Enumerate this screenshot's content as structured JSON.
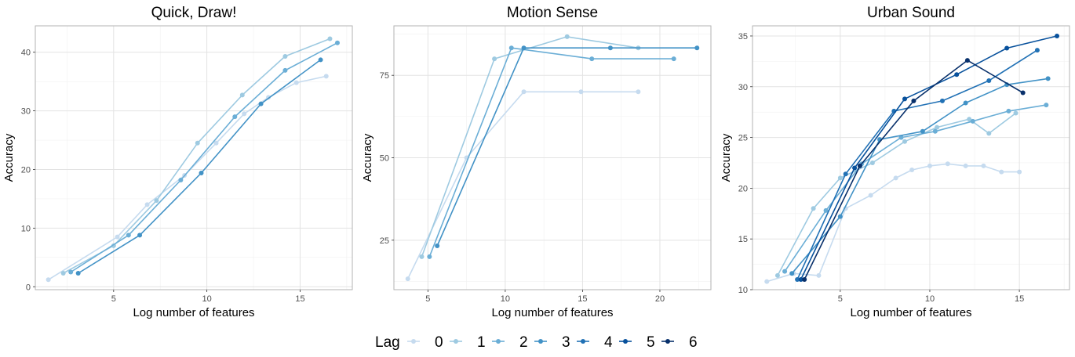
{
  "legend": {
    "title": "Lag",
    "labels": [
      "0",
      "1",
      "2",
      "3",
      "4",
      "5",
      "6"
    ],
    "colors": [
      "#c6dbef",
      "#9ecae1",
      "#6baed6",
      "#4292c6",
      "#2171b5",
      "#08519c",
      "#08306b"
    ]
  },
  "chart_data": [
    {
      "type": "line",
      "title": "Quick, Draw!",
      "xlabel": "Log number of features",
      "ylabel": "Accuracy",
      "xlim": [
        0.8,
        17.8
      ],
      "ylim": [
        -0.5,
        44.5
      ],
      "xticks": [
        5,
        10,
        15
      ],
      "yticks": [
        0,
        10,
        20,
        30,
        40
      ],
      "grid": true,
      "series": [
        {
          "name": "0",
          "x": [
            1.5,
            5.2,
            6.8,
            8.8,
            10.5,
            12.0,
            13.3,
            14.8,
            16.4
          ],
          "y": [
            1.2,
            8.5,
            14.0,
            19.0,
            24.5,
            29.5,
            32.3,
            34.8,
            35.9
          ]
        },
        {
          "name": "1",
          "x": [
            2.3,
            5.0,
            7.3,
            9.5,
            11.9,
            14.2,
            16.6
          ],
          "y": [
            2.3,
            7.0,
            14.7,
            24.5,
            32.7,
            39.3,
            42.3
          ]
        },
        {
          "name": "2",
          "x": [
            2.7,
            5.8,
            8.6,
            11.5,
            14.2,
            17.0
          ],
          "y": [
            2.5,
            8.8,
            18.2,
            29.0,
            36.9,
            41.6
          ]
        },
        {
          "name": "3",
          "x": [
            3.1,
            6.4,
            9.7,
            12.9,
            16.1
          ],
          "y": [
            2.3,
            8.8,
            19.4,
            31.2,
            38.7
          ]
        }
      ]
    },
    {
      "type": "line",
      "title": "Motion Sense",
      "xlabel": "Log number of features",
      "ylabel": "Accuracy",
      "xlim": [
        2.8,
        23.3
      ],
      "ylim": [
        10,
        90
      ],
      "xticks": [
        5,
        10,
        15,
        20
      ],
      "yticks": [
        25,
        50,
        75
      ],
      "grid": true,
      "series": [
        {
          "name": "0",
          "x": [
            3.7,
            7.5,
            11.2,
            14.9,
            18.6
          ],
          "y": [
            13.3,
            50.0,
            70.0,
            70.0,
            70.0
          ]
        },
        {
          "name": "1",
          "x": [
            4.6,
            9.3,
            14.0,
            18.6
          ],
          "y": [
            20.0,
            80.0,
            86.7,
            83.3
          ]
        },
        {
          "name": "2",
          "x": [
            5.1,
            10.4,
            15.6,
            20.9
          ],
          "y": [
            20.0,
            83.3,
            80.0,
            80.0
          ]
        },
        {
          "name": "3",
          "x": [
            5.6,
            11.2,
            16.8,
            22.4
          ],
          "y": [
            23.3,
            83.3,
            83.3,
            83.3
          ]
        }
      ]
    },
    {
      "type": "line",
      "title": "Urban Sound",
      "xlabel": "Log number of features",
      "ylabel": "Accuracy",
      "xlim": [
        0.1,
        17.8
      ],
      "ylim": [
        10,
        36
      ],
      "xticks": [
        5,
        10,
        15
      ],
      "yticks": [
        10,
        15,
        20,
        25,
        30,
        35
      ],
      "grid": true,
      "series": [
        {
          "name": "0",
          "x": [
            0.9,
            2.4,
            3.8,
            5.3,
            6.7,
            8.1,
            9.0,
            10.0,
            11.0,
            12.0,
            13.0,
            14.0,
            15.0
          ],
          "y": [
            10.8,
            11.6,
            11.4,
            18.0,
            19.3,
            21.0,
            21.8,
            22.2,
            22.4,
            22.2,
            22.2,
            21.6,
            21.6
          ]
        },
        {
          "name": "1",
          "x": [
            1.5,
            3.5,
            5.0,
            6.8,
            8.6,
            10.4,
            12.2,
            13.3,
            14.8
          ],
          "y": [
            11.4,
            18.0,
            21.0,
            22.5,
            24.6,
            26.0,
            26.8,
            25.4,
            27.4
          ]
        },
        {
          "name": "2",
          "x": [
            1.9,
            4.2,
            6.2,
            8.4,
            10.3,
            12.4,
            14.4,
            16.5
          ],
          "y": [
            11.8,
            17.8,
            22.4,
            25.0,
            25.6,
            26.6,
            27.6,
            28.2
          ]
        },
        {
          "name": "3",
          "x": [
            2.3,
            5.0,
            7.2,
            9.6,
            12.0,
            14.3,
            16.6
          ],
          "y": [
            11.6,
            17.2,
            24.8,
            25.6,
            28.4,
            30.2,
            30.8
          ]
        },
        {
          "name": "4",
          "x": [
            2.6,
            5.3,
            8.0,
            10.7,
            13.3,
            16.0
          ],
          "y": [
            11.0,
            21.4,
            27.6,
            28.6,
            30.6,
            33.6
          ]
        },
        {
          "name": "5",
          "x": [
            2.8,
            5.8,
            8.6,
            11.5,
            14.3,
            17.1
          ],
          "y": [
            11.0,
            22.0,
            28.8,
            31.2,
            33.8,
            35.0
          ]
        },
        {
          "name": "6",
          "x": [
            3.0,
            6.1,
            9.1,
            12.1,
            15.2
          ],
          "y": [
            11.0,
            22.2,
            28.6,
            32.6,
            29.4
          ]
        }
      ]
    }
  ]
}
